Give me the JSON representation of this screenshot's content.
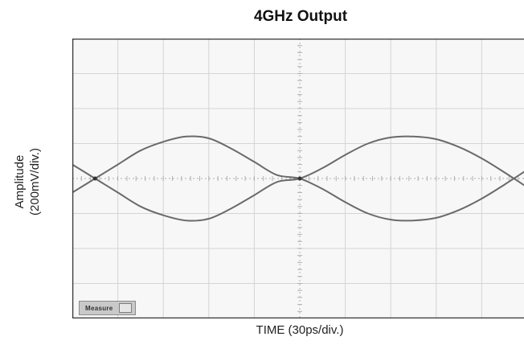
{
  "chart_data": {
    "type": "line",
    "title": "4GHz Output",
    "xlabel": "TIME (30ps/div.)",
    "ylabel_lines": [
      "Amplitude",
      "(200mV/div.)"
    ],
    "x_divisions": 10,
    "y_divisions": 8,
    "xlim": [
      0,
      300
    ],
    "ylim": [
      -800,
      800
    ],
    "x_units": "ps",
    "y_units": "mV",
    "grid": true,
    "series": [
      {
        "x": [
          0,
          15,
          30,
          45,
          60,
          75,
          90,
          105,
          120,
          135,
          150,
          165,
          180,
          195,
          210,
          225,
          240,
          255,
          270,
          285,
          300
        ],
        "values": [
          80,
          0,
          -80,
          -160,
          -210,
          -240,
          -230,
          -170,
          -95,
          -20,
          0,
          60,
          135,
          200,
          235,
          240,
          225,
          180,
          115,
          35,
          -50
        ]
      },
      {
        "x": [
          0,
          15,
          30,
          45,
          60,
          75,
          90,
          105,
          120,
          135,
          150,
          165,
          180,
          195,
          210,
          225,
          240,
          255,
          270,
          285,
          300
        ],
        "values": [
          -80,
          0,
          80,
          160,
          210,
          240,
          230,
          170,
          95,
          20,
          0,
          -60,
          -135,
          -200,
          -235,
          -240,
          -225,
          -180,
          -115,
          -35,
          50
        ]
      }
    ],
    "annotations": [
      "Measure"
    ]
  },
  "colors": {
    "trace": "#6a6a6a",
    "grid": "#d4d4d4",
    "center_ticks": "#b0b0b0",
    "frame": "#333333",
    "background": "#f7f7f7"
  }
}
